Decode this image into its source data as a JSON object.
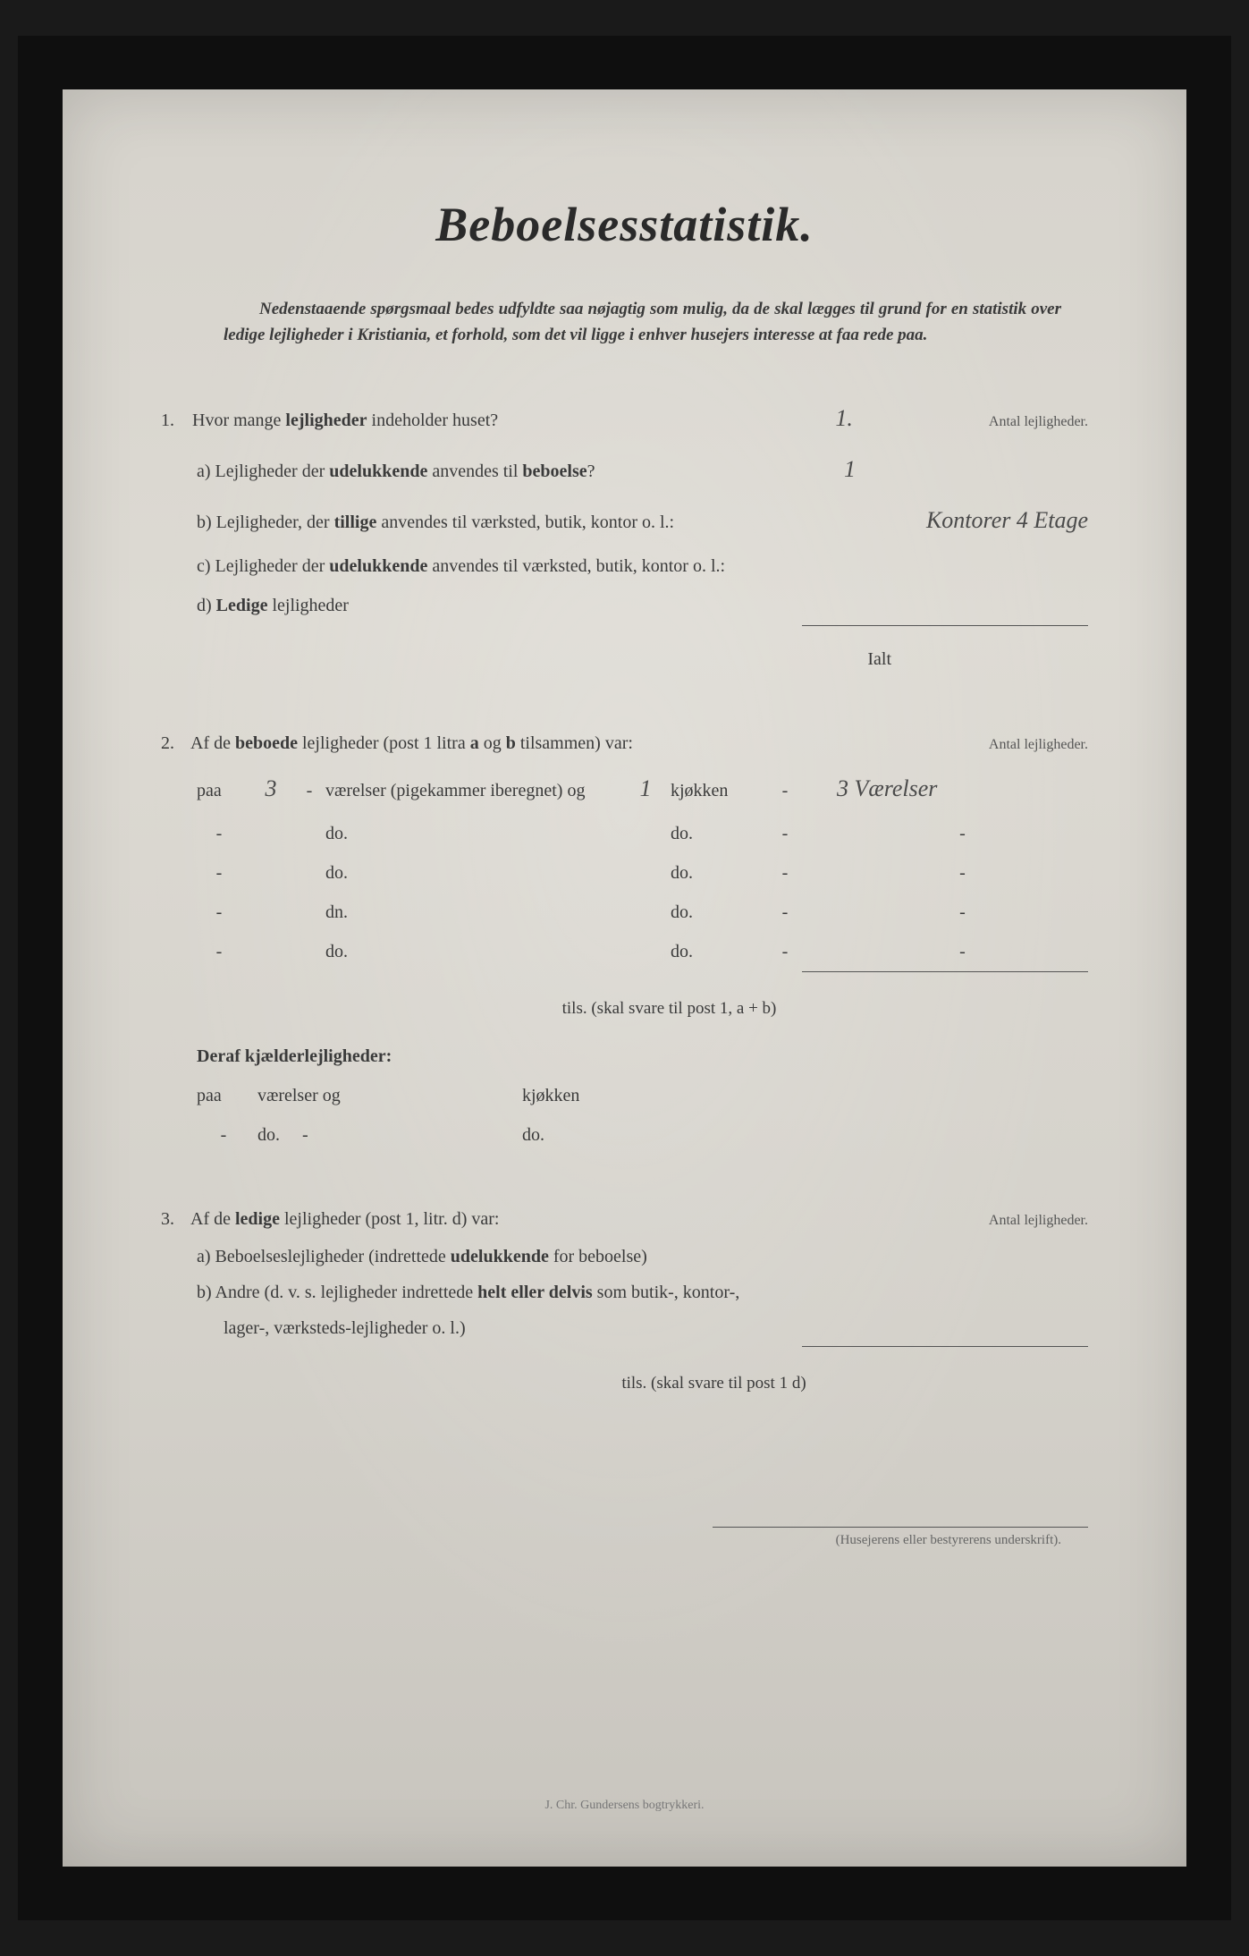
{
  "title": "Beboelsesstatistik.",
  "intro": "Nedenstaaende spørgsmaal bedes udfyldte saa nøjagtig som mulig, da de skal lægges til grund for en statistik over ledige lejligheder i Kristiania, et forhold, som det vil ligge i enhver husejers interesse at faa rede paa.",
  "q1": {
    "num": "1.",
    "text_pre": "Hvor mange ",
    "text_bold": "lejligheder",
    "text_post": " indeholder huset?",
    "answer": "1.",
    "antal_label": "Antal lejligheder.",
    "a": {
      "prefix": "a) Lejligheder der ",
      "bold": "udelukkende",
      "suffix": " anvendes til ",
      "bold2": "beboelse",
      "q": "?",
      "answer": "1"
    },
    "b": {
      "prefix": "b) Lejligheder, der ",
      "bold": "tillige",
      "suffix": " anvendes til værksted, butik, kontor o. l.:",
      "answer": "Kontorer 4 Etage"
    },
    "c": {
      "prefix": "c) Lejligheder der ",
      "bold": "udelukkende",
      "suffix": " anvendes til værksted, butik, kontor o. l.:"
    },
    "d": {
      "prefix": "d) ",
      "bold": "Ledige",
      "suffix": " lejligheder"
    },
    "ialt": "Ialt"
  },
  "q2": {
    "num": "2.",
    "text_pre": "Af de ",
    "bold1": "beboede",
    "mid": " lejligheder (post 1 litra ",
    "bold_a": "a",
    "og": " og ",
    "bold_b": "b",
    "post": " tilsammen) var:",
    "antal_label": "Antal lejligheder.",
    "row1": {
      "paa": "paa",
      "num": "3",
      "dash": "-",
      "vaer": "værelser (pigekammer iberegnet) og",
      "kj_num": "1",
      "kj": "kjøkken",
      "right": "3 Værelser"
    },
    "do_rows": [
      {
        "c1": "-",
        "c2": "do.",
        "c3": "do.",
        "c4": "-",
        "c5": "-"
      },
      {
        "c1": "-",
        "c2": "do.",
        "c3": "do.",
        "c4": "-",
        "c5": "-"
      },
      {
        "c1": "-",
        "c2": "dn.",
        "c3": "do.",
        "c4": "-",
        "c5": "-"
      },
      {
        "c1": "-",
        "c2": "do.",
        "c3": "do.",
        "c4": "-",
        "c5": "-"
      }
    ],
    "tils": "tils. (skal svare til post 1, a + b)",
    "deraf": "Deraf kjælderlejligheder:",
    "kj_row1": {
      "paa": "paa",
      "vaer": "værelser og",
      "kj": "kjøkken"
    },
    "kj_row2": {
      "paa": "-",
      "vaer": "do.     -",
      "kj": "do."
    }
  },
  "q3": {
    "num": "3.",
    "text_pre": "Af de ",
    "bold": "ledige",
    "post": " lejligheder (post 1, litr. d) var:",
    "antal_label": "Antal lejligheder.",
    "a_pre": "a) Beboelseslejligheder (indrettede ",
    "a_bold": "udelukkende",
    "a_post": " for beboelse)",
    "b_pre": "b) Andre (d. v. s. lejligheder indrettede ",
    "b_bold": "helt eller delvis",
    "b_post": " som butik-, kontor-,",
    "b_line2": "lager-, værksteds-lejligheder o. l.)",
    "tils": "tils. (skal svare til post 1 d)"
  },
  "signature_label": "(Husejerens eller bestyrerens underskrift).",
  "printer": "J. Chr. Gundersens bogtrykkeri."
}
